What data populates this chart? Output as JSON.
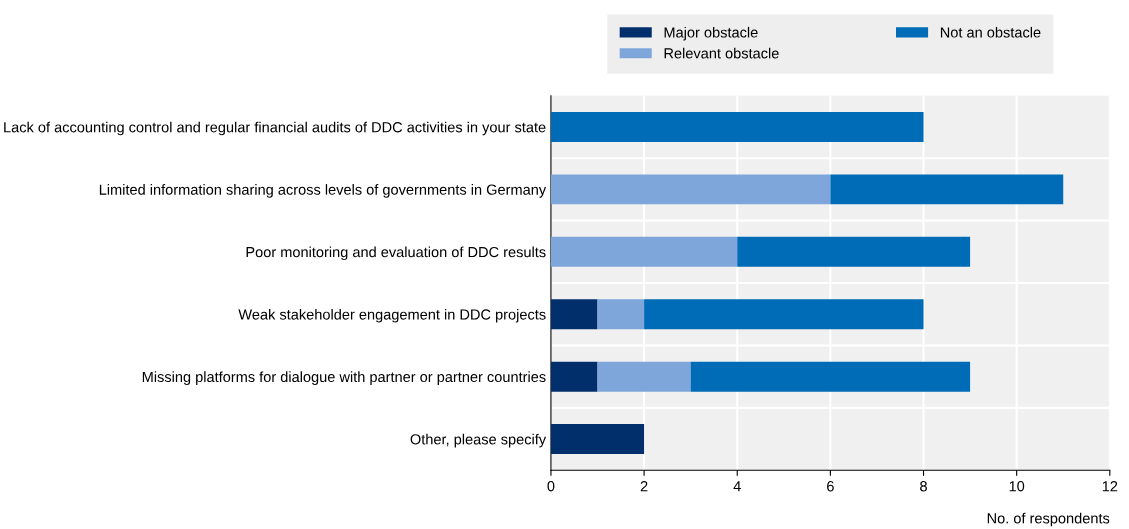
{
  "chart_data": {
    "type": "bar",
    "orientation": "horizontal",
    "stacked": true,
    "categories": [
      "Lack of accounting control and regular financial audits of DDC activities in your state",
      "Limited information sharing across levels of governments in Germany",
      "Poor monitoring and evaluation of DDC results",
      "Weak stakeholder engagement in DDC projects",
      "Missing platforms for dialogue with partner or partner countries",
      "Other, please specify"
    ],
    "series": [
      {
        "name": "Major obstacle",
        "color": "#002f6c",
        "values": [
          0,
          0,
          0,
          1,
          1,
          2
        ]
      },
      {
        "name": "Relevant obstacle",
        "color": "#7fa6db",
        "values": [
          0,
          6,
          4,
          1,
          2,
          0
        ]
      },
      {
        "name": "Not an obstacle",
        "color": "#006bb6",
        "values": [
          8,
          5,
          5,
          6,
          6,
          0
        ]
      }
    ],
    "xlabel": "No. of respondents",
    "xlim": [
      0,
      12
    ],
    "xticks": [
      0,
      2,
      4,
      6,
      8,
      10,
      12
    ],
    "grid": "x",
    "legend": "top"
  }
}
